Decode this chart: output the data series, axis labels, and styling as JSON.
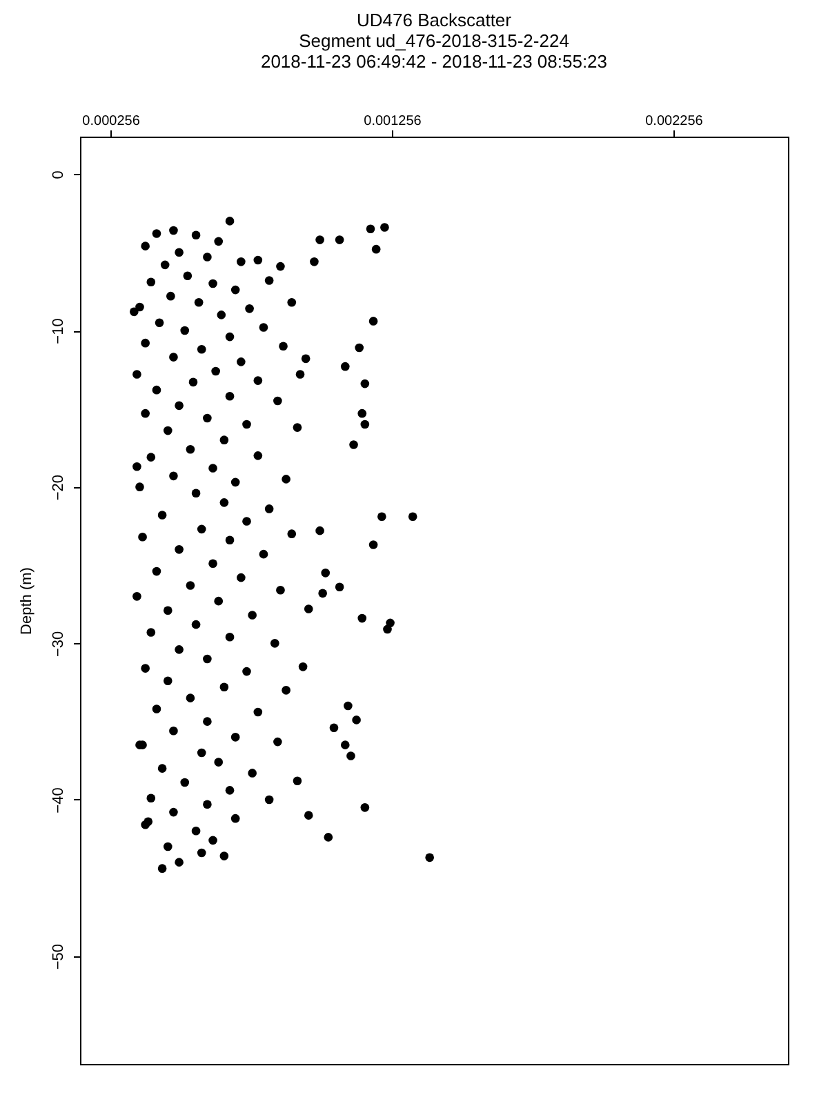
{
  "chart_data": {
    "type": "scatter",
    "title": "UD476 Backscatter",
    "subtitle": "Segment ud_476-2018-315-2-224\n2018-11-23 06:49:42 - 2018-11-23 08:55:23",
    "ylabel": "Depth (m)",
    "color": "#000000",
    "marker": "circle",
    "xlim": [
      0.000148,
      0.002663
    ],
    "xticks": [
      0.000256,
      0.001256,
      0.002256
    ],
    "ylim": [
      -56.9,
      2.4
    ],
    "yticks": [
      0,
      -10,
      -20,
      -30,
      -40,
      -50
    ],
    "x": [
      0.00068,
      0.00048,
      0.00042,
      0.00056,
      0.00064,
      0.00038,
      0.0005,
      0.0006,
      0.00045,
      0.00072,
      0.00078,
      0.00086,
      0.00053,
      0.0004,
      0.00062,
      0.0007,
      0.00082,
      0.00047,
      0.00057,
      0.00036,
      0.00075,
      0.0009,
      0.00065,
      0.00043,
      0.00052,
      0.0008,
      0.00068,
      0.00038,
      0.00058,
      0.00087,
      0.00048,
      0.00072,
      0.00035,
      0.00063,
      0.00055,
      0.00078,
      0.00042,
      0.00068,
      0.0005,
      0.00085,
      0.00038,
      0.0006,
      0.00074,
      0.00046,
      0.00092,
      0.00066,
      0.00054,
      0.0004,
      0.00078,
      0.00062,
      0.00048,
      0.0007,
      0.00088,
      0.00036,
      0.00056,
      0.00066,
      0.00082,
      0.00044,
      0.00074,
      0.00058,
      0.00037,
      0.00068,
      0.0009,
      0.0005,
      0.0008,
      0.00062,
      0.00042,
      0.00072,
      0.00054,
      0.00086,
      0.00035,
      0.00064,
      0.00046,
      0.00076,
      0.00056,
      0.0004,
      0.00068,
      0.00084,
      0.0005,
      0.0006,
      0.00038,
      0.00074,
      0.00046,
      0.00066,
      0.00088,
      0.00054,
      0.00042,
      0.00078,
      0.0006,
      0.00048,
      0.0007,
      0.00036,
      0.00085,
      0.00058,
      0.00064,
      0.00044,
      0.00076,
      0.00052,
      0.00068,
      0.0004,
      0.0006,
      0.00082,
      0.00048,
      0.0007,
      0.00038,
      0.00056,
      0.00062,
      0.00046,
      0.00058,
      0.00066,
      0.0005,
      0.00044,
      0.00096,
      0.00092,
      0.00094,
      0.00096,
      0.00093,
      0.00123,
      0.00118,
      0.0012,
      0.00107,
      0.001,
      0.00098,
      0.00119,
      0.00114,
      0.00109,
      0.00116,
      0.00133,
      0.00122,
      0.00119,
      0.00125,
      0.00124,
      0.00115,
      0.00116,
      0.00139,
      0.00103,
      0.00111,
      0.00113,
      0.0011,
      0.00105,
      0.00109,
      0.00112,
      0.00115,
      0.00116,
      0.001,
      0.00102,
      0.00107,
      0.00101,
      0.00095,
      0.00034,
      0.00035,
      0.00037,
      0.00039
    ],
    "values": [
      -3.0,
      -3.6,
      -3.8,
      -3.9,
      -4.3,
      -4.6,
      -5.0,
      -5.3,
      -5.8,
      -5.6,
      -5.5,
      -5.9,
      -6.5,
      -6.9,
      -7.0,
      -7.4,
      -6.8,
      -7.8,
      -8.2,
      -8.5,
      -8.6,
      -8.2,
      -9.0,
      -9.5,
      -10.0,
      -9.8,
      -10.4,
      -10.8,
      -11.2,
      -11.0,
      -11.7,
      -12.0,
      -12.8,
      -12.6,
      -13.3,
      -13.2,
      -13.8,
      -14.2,
      -14.8,
      -14.5,
      -15.3,
      -15.6,
      -16.0,
      -16.4,
      -16.2,
      -17.0,
      -17.6,
      -18.1,
      -18.0,
      -18.8,
      -19.3,
      -19.7,
      -19.5,
      -20.0,
      -20.4,
      -21.0,
      -21.4,
      -21.8,
      -22.2,
      -22.7,
      -23.2,
      -23.4,
      -23.0,
      -24.0,
      -24.3,
      -24.9,
      -25.4,
      -25.8,
      -26.3,
      -26.6,
      -27.0,
      -27.3,
      -27.9,
      -28.2,
      -28.8,
      -29.3,
      -29.6,
      -30.0,
      -30.4,
      -31.0,
      -31.6,
      -31.8,
      -32.4,
      -32.8,
      -33.0,
      -33.5,
      -34.2,
      -34.4,
      -35.0,
      -35.6,
      -36.0,
      -36.5,
      -36.3,
      -37.0,
      -37.6,
      -38.0,
      -38.3,
      -38.9,
      -39.4,
      -39.9,
      -40.3,
      -40.0,
      -40.8,
      -41.2,
      -41.6,
      -42.0,
      -42.6,
      -43.0,
      -43.4,
      -43.6,
      -44.0,
      -44.4,
      -41.0,
      -38.8,
      -31.5,
      -27.8,
      -12.8,
      -3.4,
      -3.5,
      -4.8,
      -4.2,
      -4.2,
      -5.6,
      -9.4,
      -11.1,
      -12.3,
      -13.4,
      -21.9,
      -21.9,
      -23.7,
      -28.7,
      -29.1,
      -28.4,
      -40.5,
      -43.7,
      -42.4,
      -37.2,
      -34.9,
      -34.0,
      -35.4,
      -36.5,
      -17.3,
      -15.3,
      -16.0,
      -22.8,
      -25.5,
      -26.4,
      -26.8,
      -11.8,
      -8.8,
      -18.7,
      -36.5,
      -41.4
    ]
  }
}
